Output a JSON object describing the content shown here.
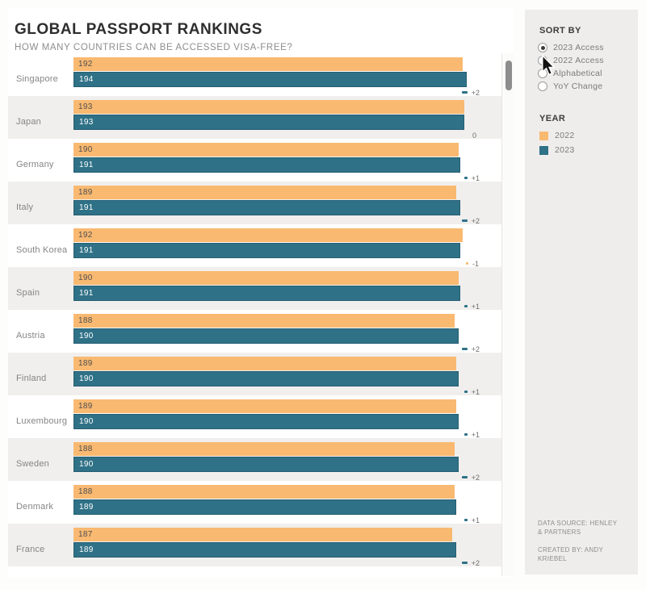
{
  "header": {
    "title": "GLOBAL PASSPORT RANKINGS",
    "subtitle": "HOW MANY COUNTRIES CAN BE ACCESSED VISA-FREE?"
  },
  "sidebar": {
    "sort": {
      "heading": "SORT BY",
      "options": [
        {
          "label": "2023 Access",
          "selected": true
        },
        {
          "label": "2022 Access",
          "selected": false
        },
        {
          "label": "Alphabetical",
          "selected": false
        },
        {
          "label": "YoY Change",
          "selected": false
        }
      ]
    },
    "legend": {
      "heading": "YEAR",
      "items": [
        {
          "label": "2022",
          "color": "#F9B971"
        },
        {
          "label": "2023",
          "color": "#2F7187"
        }
      ]
    },
    "footer": {
      "data_source": "DATA SOURCE: HENLEY & PARTNERS",
      "created_by": "CREATED BY: ANDY KRIEBEL"
    }
  },
  "chart_data": {
    "type": "bar",
    "orientation": "horizontal",
    "title": "GLOBAL PASSPORT RANKINGS",
    "subtitle": "HOW MANY COUNTRIES CAN BE ACCESSED VISA-FREE?",
    "categories": [
      "Singapore",
      "Japan",
      "Germany",
      "Italy",
      "South Korea",
      "Spain",
      "Austria",
      "Finland",
      "Luxembourg",
      "Sweden",
      "Denmark",
      "France"
    ],
    "series": [
      {
        "name": "2022",
        "color": "#F9B971",
        "values": [
          192,
          193,
          190,
          189,
          192,
          190,
          188,
          189,
          189,
          188,
          188,
          187
        ]
      },
      {
        "name": "2023",
        "color": "#2F7187",
        "values": [
          194,
          193,
          191,
          191,
          191,
          191,
          190,
          190,
          190,
          190,
          189,
          189
        ]
      }
    ],
    "yoy_change": {
      "values": [
        2,
        0,
        1,
        2,
        -1,
        1,
        2,
        1,
        1,
        2,
        1,
        2
      ],
      "labels": [
        "+2",
        "0",
        "+1",
        "+2",
        "-1",
        "+1",
        "+2",
        "+1",
        "+1",
        "+2",
        "+1",
        "+2"
      ]
    },
    "value_axis": {
      "min": 0,
      "max": 194,
      "hidden": true
    },
    "grid": false,
    "legend_position": "right-panel",
    "sort_order": "2023 Access descending"
  },
  "colors": {
    "bar_2022": "#F9B971",
    "bar_2023": "#2F7187",
    "row_stripe": "#F0EFED",
    "sidebar_bg": "#EFEDEB",
    "positive_change": "#2F7187",
    "negative_change": "#F9B971"
  }
}
